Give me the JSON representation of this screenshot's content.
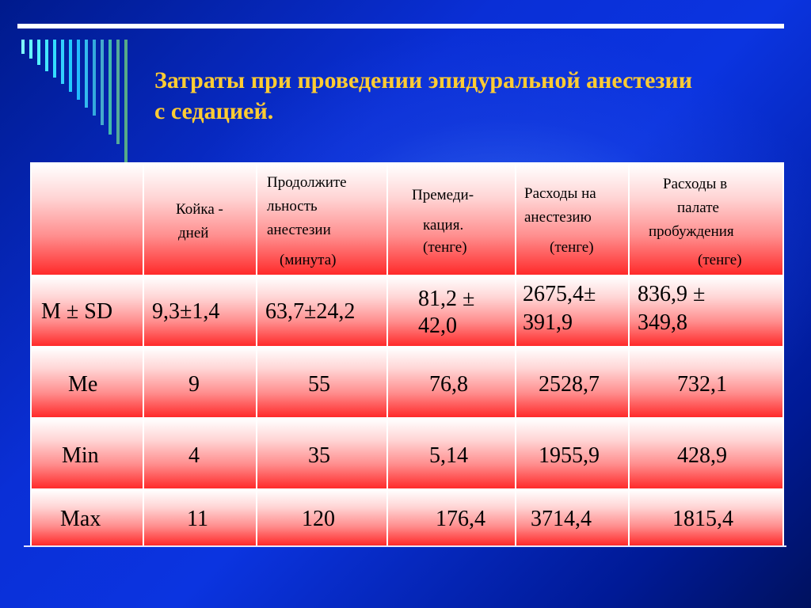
{
  "title": {
    "line1": "Затраты при проведении эпидуральной анестезии",
    "line2": "с седацией."
  },
  "table": {
    "headers": {
      "beds": [
        "Койка -",
        "дней"
      ],
      "duration": [
        "Продолжите",
        "льность",
        "анестезии",
        "(минута)"
      ],
      "premed": [
        "Премеди-",
        "кация.",
        "(тенге)"
      ],
      "anest_cost": [
        "Расходы на",
        "анестезию",
        "(тенге)"
      ],
      "ward_cost": [
        "Расходы в",
        "палате",
        "пробуждения",
        "(тенге)"
      ]
    },
    "rows": [
      {
        "label": "M ± SD",
        "beds": "9,3±1,4",
        "duration": "63,7±24,2",
        "premed": [
          "81,2 ±",
          "42,0"
        ],
        "anest_cost": [
          "2675,4±",
          "391,9"
        ],
        "ward_cost": [
          "836,9 ±",
          "349,8"
        ]
      },
      {
        "label": "Me",
        "beds": "9",
        "duration": "55",
        "premed": "76,8",
        "anest_cost": "2528,7",
        "ward_cost": "732,1"
      },
      {
        "label": "Min",
        "beds": "4",
        "duration": "35",
        "premed": "5,14",
        "anest_cost": "1955,9",
        "ward_cost": "428,9"
      },
      {
        "label": "Max",
        "beds": "11",
        "duration": "120",
        "premed": "176,4",
        "anest_cost": "3714,4",
        "ward_cost": "1815,4"
      }
    ]
  }
}
